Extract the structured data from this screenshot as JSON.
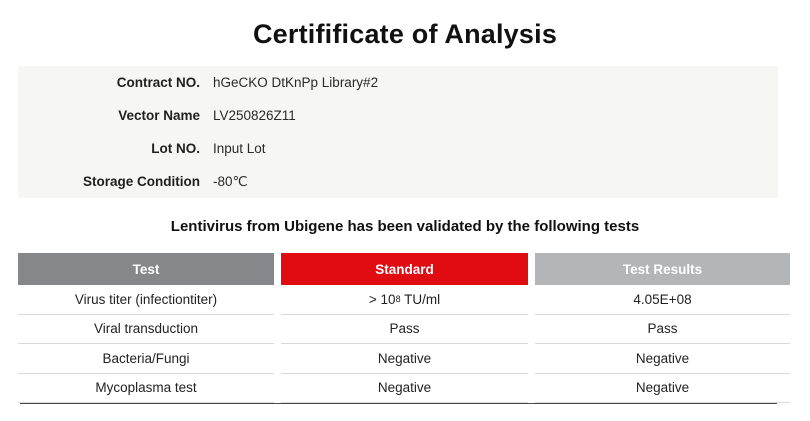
{
  "page": {
    "title": "Certifificate of Analysis",
    "subtitle": "Lentivirus from Ubigene has been validated by the following tests"
  },
  "info": {
    "rows": [
      {
        "label": "Contract NO.",
        "value": "hGeCKO DtKnPp Library#2"
      },
      {
        "label": "Vector Name",
        "value": "LV250826Z11"
      },
      {
        "label": "Lot NO.",
        "value": "Input Lot"
      },
      {
        "label": "Storage Condition",
        "value": "-80℃"
      }
    ]
  },
  "table": {
    "headers": [
      {
        "label": "Test"
      },
      {
        "label": "Standard"
      },
      {
        "label": "Test Results"
      }
    ],
    "rows": [
      {
        "test": "Virus titer (infectiontiter)",
        "standard_prefix": "> 10",
        "standard_sup": "8",
        "standard_suffix": " TU/ml",
        "result": "4.05E+08"
      },
      {
        "test": "Viral transduction",
        "standard": "Pass",
        "result": "Pass"
      },
      {
        "test": "Bacteria/Fungi",
        "standard": "Negative",
        "result": "Negative"
      },
      {
        "test": "Mycoplasma test",
        "standard": "Negative",
        "result": "Negative"
      }
    ]
  },
  "colors": {
    "header_test_bg": "#85878A",
    "header_standard_bg": "#E00C12",
    "header_results_bg": "#B3B5B7",
    "info_box_bg": "#F6F6F5",
    "row_divider": "#D9D9D9",
    "table_bottom_border": "#4A4A4A"
  }
}
